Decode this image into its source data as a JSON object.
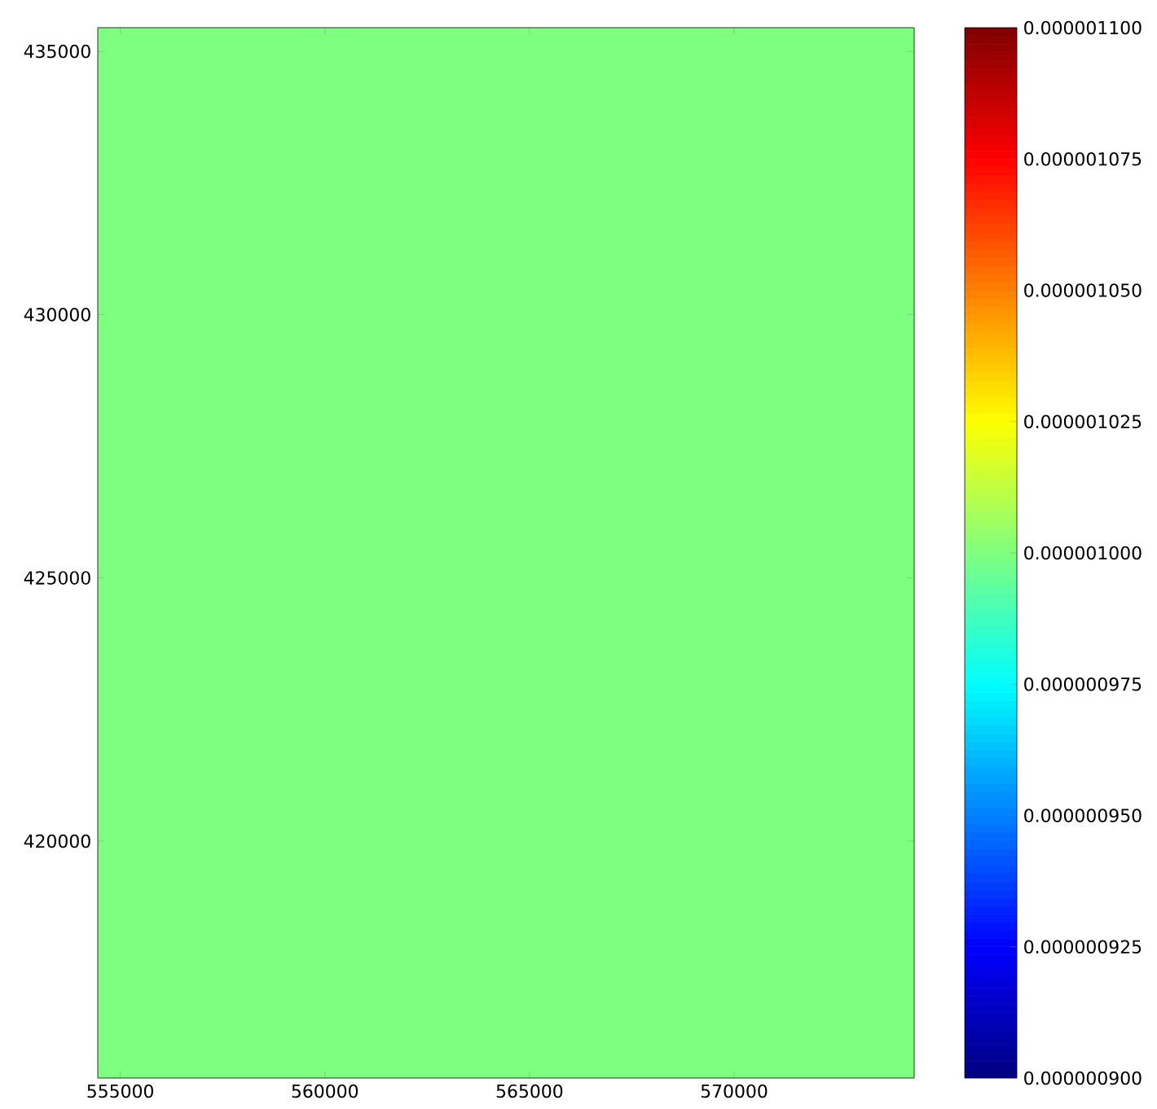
{
  "chart_data": {
    "type": "heatmap",
    "xlim": [
      554450,
      574400
    ],
    "ylim": [
      415500,
      435450
    ],
    "xticks": [
      555000,
      560000,
      565000,
      570000
    ],
    "yticks": [
      420000,
      425000,
      430000,
      435000
    ],
    "cells": [
      [
        1e-06
      ]
    ],
    "clim": [
      9e-07,
      1.1e-06
    ],
    "cticks": [
      {
        "value": 9e-07,
        "label": "0.000000900"
      },
      {
        "value": 9.25e-07,
        "label": "0.000000925"
      },
      {
        "value": 9.5e-07,
        "label": "0.000000950"
      },
      {
        "value": 9.75e-07,
        "label": "0.000000975"
      },
      {
        "value": 1e-06,
        "label": "0.000001000"
      },
      {
        "value": 1.025e-06,
        "label": "0.000001025"
      },
      {
        "value": 1.05e-06,
        "label": "0.000001050"
      },
      {
        "value": 1.075e-06,
        "label": "0.000001075"
      },
      {
        "value": 1.1e-06,
        "label": "0.000001100"
      }
    ]
  }
}
